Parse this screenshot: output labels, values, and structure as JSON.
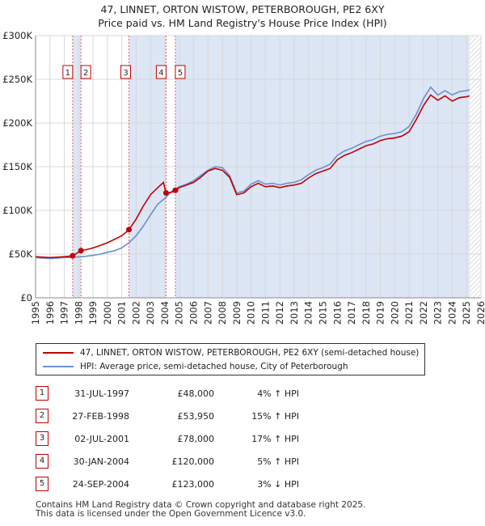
{
  "title_line1": "47, LINNET, ORTON WISTOW, PETERBOROUGH, PE2 6XY",
  "title_line2": "Price paid vs. HM Land Registry's House Price Index (HPI)",
  "colors": {
    "price_line": "#c00000",
    "hpi_line": "#6a8fd0",
    "shade": "#dce6f5",
    "marker": "#c00000",
    "vline": "#e06060"
  },
  "chart_data": {
    "type": "line",
    "xlim": [
      1995,
      2026
    ],
    "ylim": [
      0,
      300000
    ],
    "y_ticks": [
      0,
      50000,
      100000,
      150000,
      200000,
      250000,
      300000
    ],
    "y_tick_labels": [
      "£0",
      "£50K",
      "£100K",
      "£150K",
      "£200K",
      "£250K",
      "£300K"
    ],
    "x_ticks": [
      1995,
      1996,
      1997,
      1998,
      1999,
      2000,
      2001,
      2002,
      2003,
      2004,
      2005,
      2006,
      2007,
      2008,
      2009,
      2010,
      2011,
      2012,
      2013,
      2014,
      2015,
      2016,
      2017,
      2018,
      2019,
      2020,
      2021,
      2022,
      2023,
      2024,
      2025,
      2026
    ],
    "x_tick_labels": [
      "1995",
      "1996",
      "1997",
      "1998",
      "1999",
      "2000",
      "2001",
      "2002",
      "2003",
      "2004",
      "2005",
      "2006",
      "2007",
      "2008",
      "2009",
      "2010",
      "2011",
      "2012",
      "2013",
      "2014",
      "2015",
      "2016",
      "2017",
      "2018",
      "2019",
      "2020",
      "2021",
      "2022",
      "2023",
      "2024",
      "2025",
      "2026"
    ],
    "shaded_ranges": [
      [
        1997.58,
        1998.16
      ],
      [
        2001.5,
        2004.08
      ],
      [
        2004.73,
        2025.2
      ]
    ],
    "future_hatch_from": 2025.2,
    "series": [
      {
        "name": "47, LINNET, ORTON WISTOW, PETERBOROUGH, PE2 6XY (semi-detached house)",
        "x": [
          1995,
          1995.5,
          1996,
          1996.5,
          1997,
          1997.58,
          1998.16,
          1998.5,
          1999,
          1999.5,
          2000,
          2000.5,
          2001,
          2001.5,
          2002,
          2002.5,
          2003,
          2003.5,
          2003.9,
          2004.08,
          2004.5,
          2004.73,
          2005,
          2005.5,
          2006,
          2006.5,
          2007,
          2007.5,
          2008,
          2008.5,
          2009,
          2009.5,
          2010,
          2010.5,
          2011,
          2011.5,
          2012,
          2012.5,
          2013,
          2013.5,
          2014,
          2014.5,
          2015,
          2015.5,
          2016,
          2016.5,
          2017,
          2017.5,
          2018,
          2018.5,
          2019,
          2019.5,
          2020,
          2020.5,
          2021,
          2021.5,
          2022,
          2022.5,
          2023,
          2023.5,
          2024,
          2024.5,
          2025,
          2025.2
        ],
        "values": [
          47000,
          46500,
          46000,
          46500,
          47000,
          48000,
          53950,
          55000,
          57000,
          60000,
          63000,
          67000,
          71000,
          78000,
          90000,
          105000,
          118000,
          126000,
          132000,
          120000,
          121000,
          123000,
          126000,
          129000,
          132000,
          138000,
          145000,
          148000,
          146000,
          138000,
          118000,
          120000,
          127000,
          131000,
          127000,
          128000,
          126000,
          128000,
          129000,
          131000,
          137000,
          142000,
          145000,
          148000,
          158000,
          163000,
          166000,
          170000,
          174000,
          176000,
          180000,
          182000,
          183000,
          185000,
          190000,
          204000,
          220000,
          232000,
          226000,
          231000,
          225000,
          229000,
          230000,
          231000
        ]
      },
      {
        "name": "HPI: Average price, semi-detached house, City of Peterborough",
        "x": [
          1995,
          1995.5,
          1996,
          1996.5,
          1997,
          1997.58,
          1998.16,
          1998.5,
          1999,
          1999.5,
          2000,
          2000.5,
          2001,
          2001.5,
          2002,
          2002.5,
          2003,
          2003.5,
          2004,
          2004.5,
          2005,
          2005.5,
          2006,
          2006.5,
          2007,
          2007.5,
          2008,
          2008.5,
          2009,
          2009.5,
          2010,
          2010.5,
          2011,
          2011.5,
          2012,
          2012.5,
          2013,
          2013.5,
          2014,
          2014.5,
          2015,
          2015.5,
          2016,
          2016.5,
          2017,
          2017.5,
          2018,
          2018.5,
          2019,
          2019.5,
          2020,
          2020.5,
          2021,
          2021.5,
          2022,
          2022.5,
          2023,
          2023.5,
          2024,
          2024.5,
          2025,
          2025.2
        ],
        "values": [
          46000,
          45500,
          45000,
          45500,
          46000,
          46200,
          47000,
          47500,
          48500,
          50000,
          52000,
          54000,
          57000,
          63000,
          71000,
          82000,
          95000,
          107000,
          114000,
          122000,
          127000,
          130000,
          134000,
          140000,
          146000,
          150000,
          149000,
          140000,
          120000,
          122000,
          130000,
          134000,
          130000,
          131000,
          129000,
          131000,
          132000,
          135000,
          141000,
          146000,
          149000,
          153000,
          163000,
          168000,
          171000,
          175000,
          179000,
          181000,
          185000,
          187000,
          188000,
          190000,
          196000,
          210000,
          228000,
          241000,
          232000,
          237000,
          232000,
          236000,
          237000,
          238000
        ]
      }
    ],
    "sales": [
      {
        "id": "1",
        "x": 1997.58,
        "price": 48000
      },
      {
        "id": "2",
        "x": 1998.16,
        "price": 53950
      },
      {
        "id": "3",
        "x": 2001.5,
        "price": 78000
      },
      {
        "id": "4",
        "x": 2004.08,
        "price": 120000
      },
      {
        "id": "5",
        "x": 2004.73,
        "price": 123000
      }
    ]
  },
  "legend": {
    "price_label": "47, LINNET, ORTON WISTOW, PETERBOROUGH, PE2 6XY (semi-detached house)",
    "hpi_label": "HPI: Average price, semi-detached house, City of Peterborough"
  },
  "transactions": [
    {
      "num": "1",
      "date": "31-JUL-1997",
      "price": "£48,000",
      "hpi": "4% ↑ HPI"
    },
    {
      "num": "2",
      "date": "27-FEB-1998",
      "price": "£53,950",
      "hpi": "15% ↑ HPI"
    },
    {
      "num": "3",
      "date": "02-JUL-2001",
      "price": "£78,000",
      "hpi": "17% ↑ HPI"
    },
    {
      "num": "4",
      "date": "30-JAN-2004",
      "price": "£120,000",
      "hpi": "5% ↑ HPI"
    },
    {
      "num": "5",
      "date": "24-SEP-2004",
      "price": "£123,000",
      "hpi": "3% ↓ HPI"
    }
  ],
  "footer_line1": "Contains HM Land Registry data © Crown copyright and database right 2025.",
  "footer_line2": "This data is licensed under the Open Government Licence v3.0."
}
